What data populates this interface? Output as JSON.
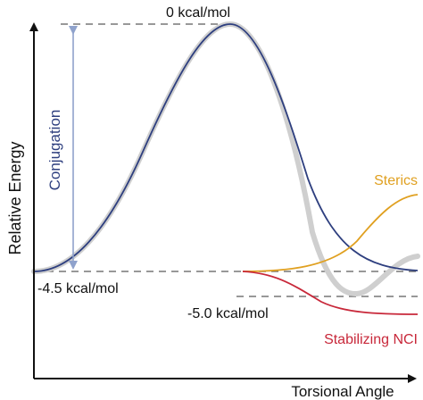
{
  "axes": {
    "y_label": "Relative Energy",
    "x_label": "Torsional Angle"
  },
  "energy_levels": {
    "top": "0 kcal/mol",
    "conjugation_min": "-4.5 kcal/mol",
    "nci_min": "-5.0 kcal/mol"
  },
  "arrow_label": "Conjugation",
  "curve_labels": {
    "sterics": "Sterics",
    "stabilizing_nci": "Stabilizing NCI"
  },
  "colors": {
    "axis": "#111111",
    "conjugation_curve": "#2e3f7f",
    "conjugation_arrow": "#8fa2cc",
    "conjugation_label": "#2e3f7f",
    "total_curve": "#cfcfcf",
    "sterics": "#e0a020",
    "stabilizing_nci": "#c8283a",
    "dashed": "#777777",
    "text": "#111111"
  }
}
